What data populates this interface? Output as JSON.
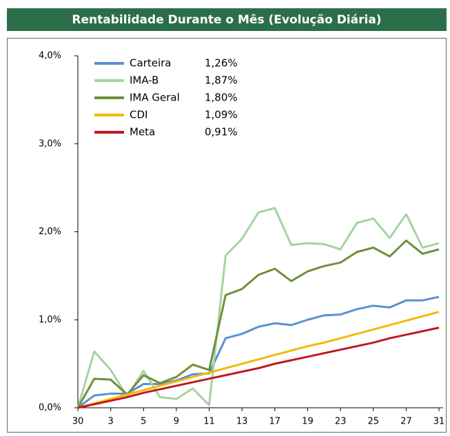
{
  "chart_data": {
    "type": "line",
    "title": "Rentabilidade Durante o Mês (Evolução Diária)",
    "categories": [
      "30",
      null,
      "3",
      null,
      "5",
      null,
      "9",
      null,
      "11",
      null,
      "13",
      null,
      "17",
      null,
      "19",
      null,
      "23",
      null,
      "25",
      null,
      "27",
      null,
      "31"
    ],
    "ylim": [
      0,
      4
    ],
    "yticks": [
      {
        "value": 0,
        "label": "0,0%"
      },
      {
        "value": 1,
        "label": "1,0%"
      },
      {
        "value": 2,
        "label": "2,0%"
      },
      {
        "value": 3,
        "label": "3,0%"
      },
      {
        "value": 4,
        "label": "4,0%"
      }
    ],
    "series": [
      {
        "name": "Carteira",
        "legend_value": "1,26%",
        "color": "#5b8fd1",
        "values": [
          0,
          0.14,
          0.16,
          0.16,
          0.27,
          0.27,
          0.31,
          0.38,
          0.39,
          0.79,
          0.84,
          0.92,
          0.96,
          0.94,
          1.0,
          1.05,
          1.06,
          1.12,
          1.16,
          1.14,
          1.22,
          1.22,
          1.26
        ]
      },
      {
        "name": "IMA-B",
        "legend_value": "1,87%",
        "color": "#a3d4a0",
        "values": [
          0,
          0.64,
          0.43,
          0.13,
          0.42,
          0.12,
          0.1,
          0.22,
          0.03,
          1.73,
          1.92,
          2.22,
          2.27,
          1.85,
          1.87,
          1.86,
          1.8,
          2.1,
          2.15,
          1.93,
          2.2,
          1.82,
          1.87
        ]
      },
      {
        "name": "IMA Geral",
        "legend_value": "1,80%",
        "color": "#6f8f3a",
        "values": [
          0,
          0.33,
          0.32,
          0.15,
          0.37,
          0.28,
          0.35,
          0.49,
          0.43,
          1.28,
          1.35,
          1.51,
          1.58,
          1.44,
          1.55,
          1.61,
          1.65,
          1.77,
          1.82,
          1.72,
          1.9,
          1.75,
          1.8
        ]
      },
      {
        "name": "CDI",
        "legend_value": "1,09%",
        "color": "#f5b800",
        "values": [
          0,
          0.05,
          0.1,
          0.15,
          0.2,
          0.25,
          0.3,
          0.35,
          0.4,
          0.45,
          0.5,
          0.55,
          0.6,
          0.65,
          0.7,
          0.74,
          0.79,
          0.84,
          0.89,
          0.94,
          0.99,
          1.04,
          1.09
        ]
      },
      {
        "name": "Meta",
        "legend_value": "0,91%",
        "color": "#c0191e",
        "values": [
          0,
          0.04,
          0.08,
          0.12,
          0.17,
          0.21,
          0.25,
          0.29,
          0.33,
          0.37,
          0.41,
          0.45,
          0.5,
          0.54,
          0.58,
          0.62,
          0.66,
          0.7,
          0.74,
          0.79,
          0.83,
          0.87,
          0.91
        ]
      }
    ]
  }
}
